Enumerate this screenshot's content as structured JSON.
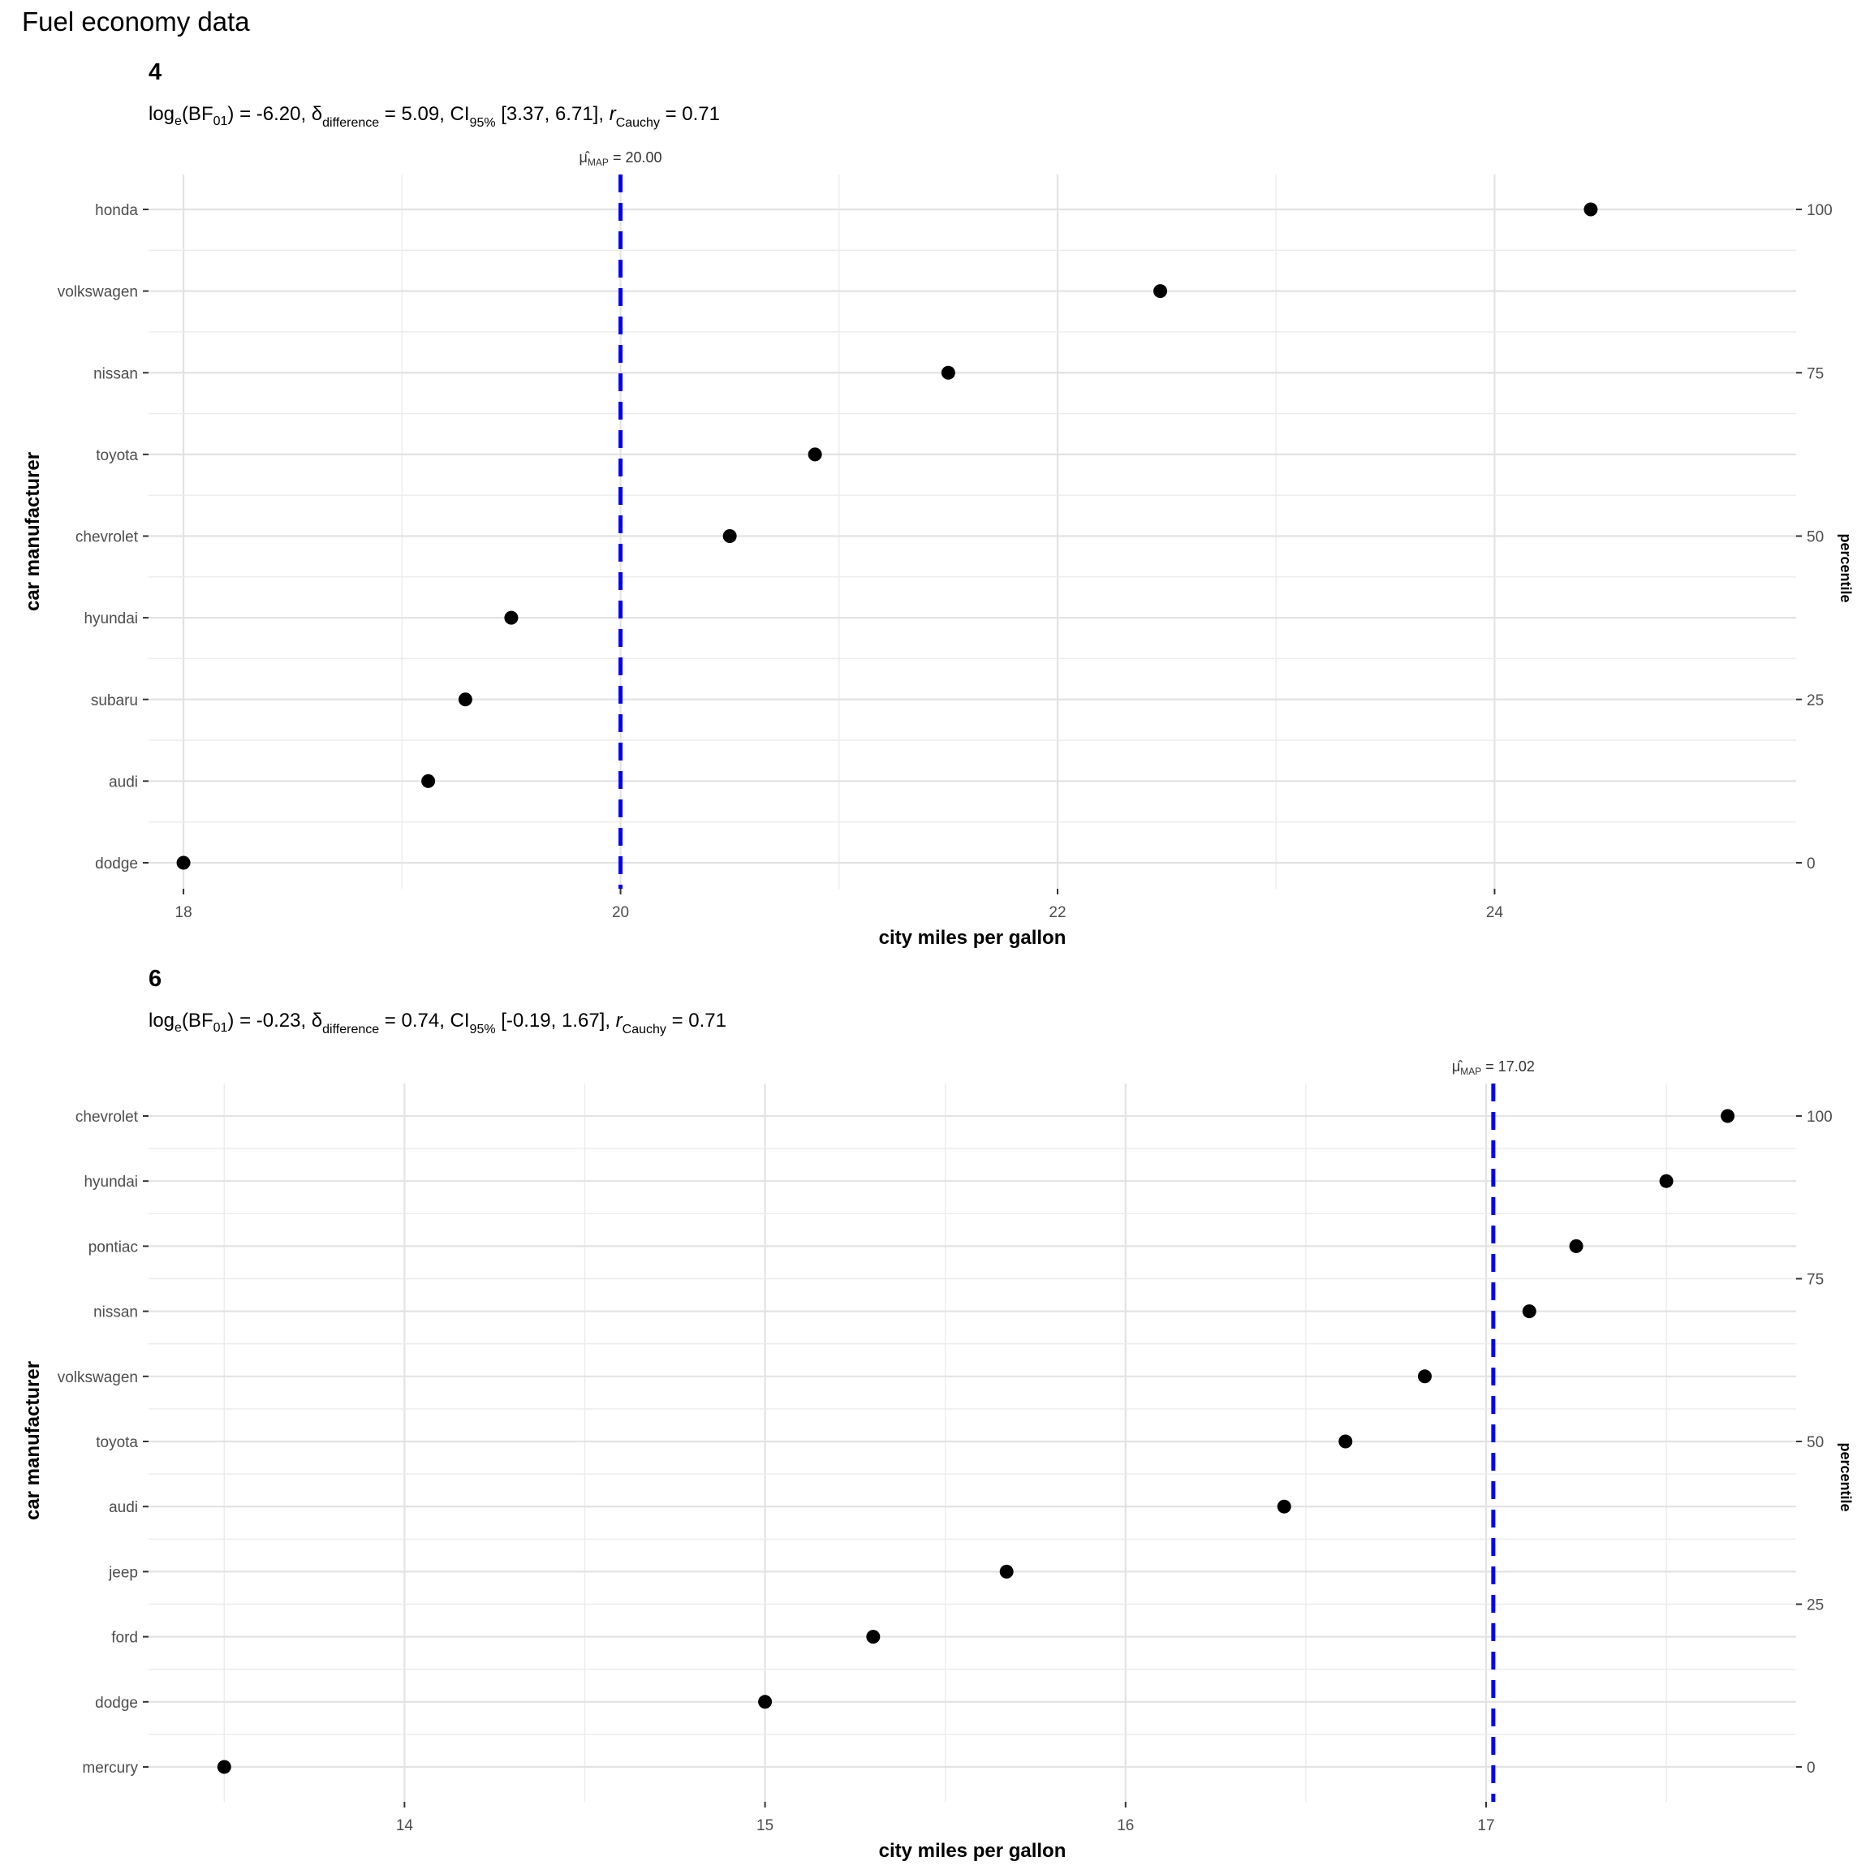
{
  "page_title": "Fuel economy data",
  "chart_data": [
    {
      "type": "scatter",
      "panel_label": "4",
      "subtitle": {
        "bf_value": "-6.20",
        "delta_value": "5.09",
        "ci_value": "[3.37, 6.71]",
        "r_value": "0.71"
      },
      "map_label_value": "20.00",
      "map_value": 20.0,
      "xlabel": "city miles per gallon",
      "ylabel": "car manufacturer",
      "y2label": "percentile",
      "xlim": [
        17.84,
        25.38
      ],
      "x_ticks": [
        18,
        20,
        22,
        24
      ],
      "x_tick_labels": [
        "18",
        "20",
        "22",
        "24"
      ],
      "x_minor_ticks": [
        19,
        21,
        23
      ],
      "categories": [
        "dodge",
        "audi",
        "subaru",
        "hyundai",
        "chevrolet",
        "toyota",
        "nissan",
        "volkswagen",
        "honda"
      ],
      "values": [
        18.0,
        19.12,
        19.29,
        19.5,
        20.5,
        20.89,
        21.5,
        22.47,
        24.44
      ],
      "percentile_ticks": [
        0,
        25,
        50,
        75,
        100
      ],
      "percentile_tick_labels": [
        "0",
        "25",
        "50",
        "75",
        "100"
      ],
      "grid": true,
      "point_color": "#000000",
      "map_line_color": "#0000ff"
    },
    {
      "type": "scatter",
      "panel_label": "6",
      "subtitle": {
        "bf_value": "-0.23",
        "delta_value": "0.74",
        "ci_value": "[-0.19, 1.67]",
        "r_value": "0.71"
      },
      "map_label_value": "17.02",
      "map_value": 17.02,
      "xlabel": "city miles per gallon",
      "ylabel": "car manufacturer",
      "y2label": "percentile",
      "xlim": [
        13.29,
        17.86
      ],
      "x_ticks": [
        14,
        15,
        16,
        17
      ],
      "x_tick_labels": [
        "14",
        "15",
        "16",
        "17"
      ],
      "x_minor_ticks": [
        13.5,
        14.5,
        15.5,
        16.5,
        17.5
      ],
      "categories": [
        "mercury",
        "dodge",
        "ford",
        "jeep",
        "audi",
        "toyota",
        "volkswagen",
        "nissan",
        "pontiac",
        "hyundai",
        "chevrolet"
      ],
      "values": [
        13.5,
        15.0,
        15.3,
        15.67,
        16.44,
        16.61,
        16.83,
        17.12,
        17.25,
        17.5,
        17.67
      ],
      "percentile_ticks": [
        0,
        25,
        50,
        75,
        100
      ],
      "percentile_tick_labels": [
        "0",
        "25",
        "50",
        "75",
        "100"
      ],
      "grid": true,
      "point_color": "#000000",
      "map_line_color": "#0000ff"
    }
  ]
}
